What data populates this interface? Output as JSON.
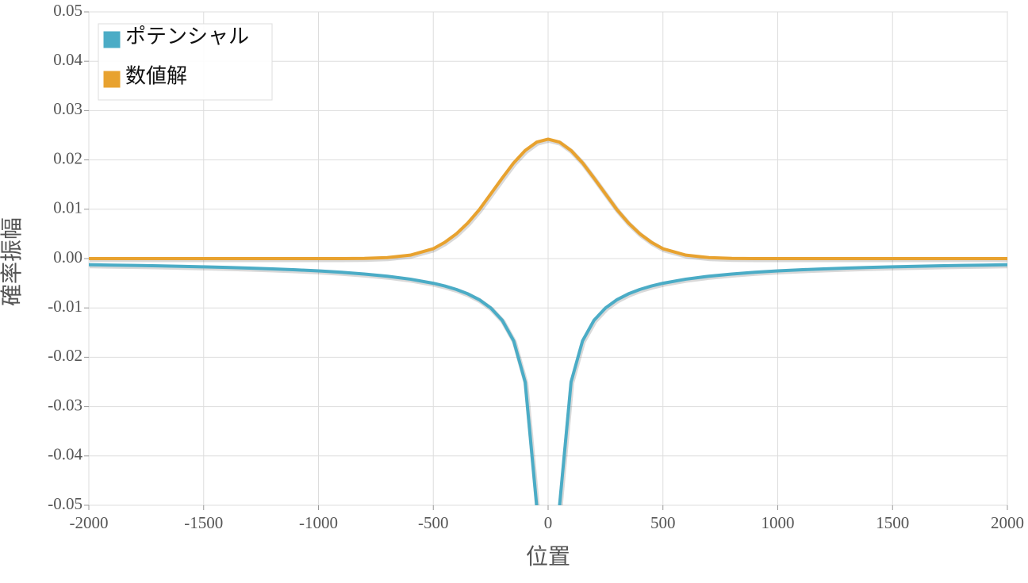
{
  "chart_data": {
    "type": "line",
    "x_label": "位置",
    "y_label": "確率振幅",
    "x": [
      -2000,
      -1900,
      -1800,
      -1700,
      -1600,
      -1500,
      -1400,
      -1300,
      -1200,
      -1100,
      -1000,
      -900,
      -800,
      -700,
      -600,
      -500,
      -450,
      -400,
      -350,
      -300,
      -250,
      -200,
      -150,
      -100,
      -50,
      0,
      50,
      100,
      150,
      200,
      250,
      300,
      350,
      400,
      450,
      500,
      600,
      700,
      800,
      900,
      1000,
      1100,
      1200,
      1300,
      1400,
      1500,
      1600,
      1700,
      1800,
      1900,
      2000
    ],
    "series": [
      {
        "name": "ポテンシャル",
        "color": "#4bacc6",
        "values": [
          -0.00125,
          -0.00132,
          -0.00139,
          -0.00147,
          -0.00156,
          -0.00167,
          -0.00179,
          -0.00192,
          -0.00208,
          -0.00227,
          -0.0025,
          -0.00278,
          -0.00313,
          -0.00357,
          -0.00417,
          -0.005,
          -0.00556,
          -0.00625,
          -0.00714,
          -0.00833,
          -0.01,
          -0.0125,
          -0.01667,
          -0.025,
          -0.05,
          null,
          -0.05,
          -0.025,
          -0.01667,
          -0.0125,
          -0.01,
          -0.00833,
          -0.00714,
          -0.00625,
          -0.00556,
          -0.005,
          -0.00417,
          -0.00357,
          -0.00313,
          -0.00278,
          -0.0025,
          -0.00227,
          -0.00208,
          -0.00192,
          -0.00179,
          -0.00167,
          -0.00156,
          -0.00147,
          -0.00139,
          -0.00132,
          -0.00125
        ]
      },
      {
        "name": "数値解",
        "color": "#e8a22f",
        "values": [
          0,
          0,
          0,
          0,
          0,
          0,
          0,
          0,
          0,
          0,
          0,
          0,
          4e-05,
          0.0002,
          0.0007,
          0.002,
          0.0033,
          0.005,
          0.0072,
          0.0099,
          0.0131,
          0.0163,
          0.0194,
          0.0219,
          0.0236,
          0.0242,
          0.0236,
          0.0219,
          0.0194,
          0.0163,
          0.0131,
          0.0099,
          0.0072,
          0.005,
          0.0033,
          0.002,
          0.0007,
          0.0002,
          4e-05,
          0,
          0,
          0,
          0,
          0,
          0,
          0,
          0,
          0,
          0,
          0,
          0
        ]
      }
    ],
    "xlim": [
      -2000,
      2000
    ],
    "xticks": [
      -2000,
      -1500,
      -1000,
      -500,
      0,
      500,
      1000,
      1500,
      2000
    ],
    "ylim": [
      -0.05,
      0.05
    ],
    "yticks": [
      -0.05,
      -0.04,
      -0.03,
      -0.02,
      -0.01,
      {
        "value": 0,
        "label": "0.00"
      },
      0.01,
      0.02,
      0.03,
      0.04,
      0.05
    ],
    "grid": true,
    "legend": "upper-left"
  }
}
